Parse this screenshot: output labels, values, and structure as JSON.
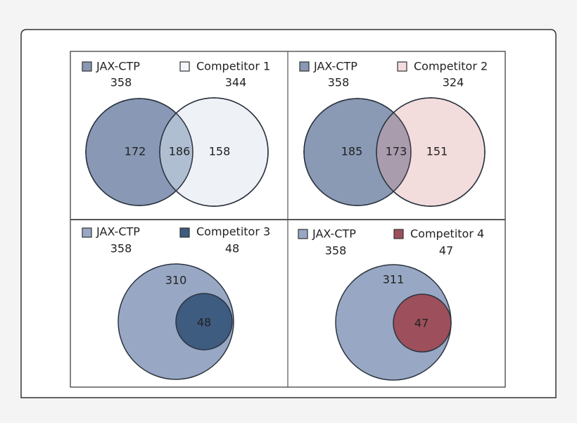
{
  "panels": [
    {
      "legend": [
        {
          "label": "JAX-CTP",
          "total": 358
        },
        {
          "label": "Competitor 1",
          "total": 344
        }
      ],
      "regions": [
        172,
        186,
        158
      ]
    },
    {
      "legend": [
        {
          "label": "JAX-CTP",
          "total": 358
        },
        {
          "label": "Competitor 2",
          "total": 324
        }
      ],
      "regions": [
        185,
        173,
        151
      ]
    },
    {
      "legend": [
        {
          "label": "JAX-CTP",
          "total": 358
        },
        {
          "label": "Competitor 3",
          "total": 48
        }
      ],
      "regions": [
        310,
        48
      ]
    },
    {
      "legend": [
        {
          "label": "JAX-CTP",
          "total": 358
        },
        {
          "label": "Competitor 4",
          "total": 47
        }
      ],
      "regions": [
        311,
        47
      ]
    }
  ]
}
